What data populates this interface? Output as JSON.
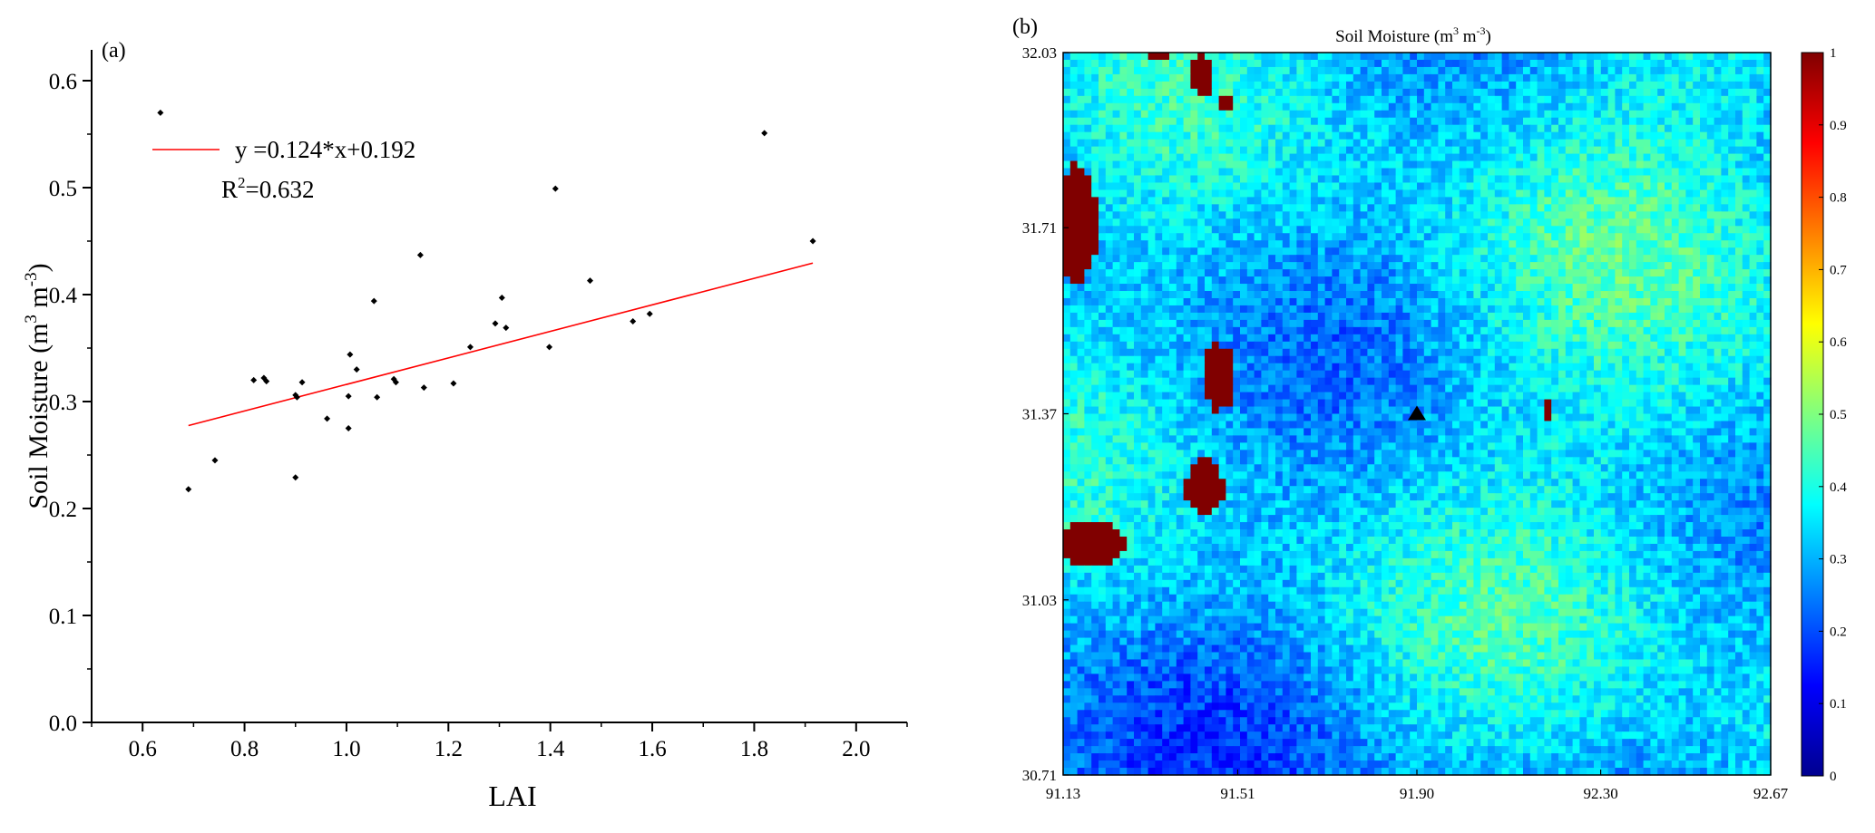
{
  "panel_a_label": "(a)",
  "panel_b_label": "(b)",
  "chart_data": [
    {
      "type": "scatter",
      "panel": "(a)",
      "xlabel": "LAI",
      "ylabel_main": "Soil Moisture (m",
      "ylabel_sup1": "3",
      "ylabel_mid": " m",
      "ylabel_sup2": "-3",
      "ylabel_end": ")",
      "xlim": [
        0.5,
        2.1
      ],
      "ylim": [
        0.0,
        0.6
      ],
      "xticks": [
        "0.6",
        "0.8",
        "1.0",
        "1.2",
        "1.4",
        "1.6",
        "1.8",
        "2.0"
      ],
      "yticks": [
        "0.0",
        "0.1",
        "0.2",
        "0.3",
        "0.4",
        "0.5",
        "0.6"
      ],
      "points": [
        [
          0.635,
          0.57
        ],
        [
          0.69,
          0.218
        ],
        [
          0.742,
          0.245
        ],
        [
          0.818,
          0.32
        ],
        [
          0.838,
          0.322
        ],
        [
          0.843,
          0.319
        ],
        [
          0.9,
          0.306
        ],
        [
          0.903,
          0.304
        ],
        [
          0.9,
          0.229
        ],
        [
          0.913,
          0.318
        ],
        [
          0.962,
          0.284
        ],
        [
          1.004,
          0.275
        ],
        [
          1.004,
          0.305
        ],
        [
          1.007,
          0.344
        ],
        [
          1.02,
          0.33
        ],
        [
          1.054,
          0.394
        ],
        [
          1.06,
          0.304
        ],
        [
          1.093,
          0.321
        ],
        [
          1.097,
          0.318
        ],
        [
          1.145,
          0.437
        ],
        [
          1.152,
          0.313
        ],
        [
          1.21,
          0.317
        ],
        [
          1.243,
          0.351
        ],
        [
          1.292,
          0.373
        ],
        [
          1.305,
          0.397
        ],
        [
          1.313,
          0.369
        ],
        [
          1.398,
          0.351
        ],
        [
          1.41,
          0.499
        ],
        [
          1.478,
          0.413
        ],
        [
          1.562,
          0.375
        ],
        [
          1.595,
          0.382
        ],
        [
          1.82,
          0.551
        ],
        [
          1.915,
          0.45
        ]
      ],
      "fit_line": {
        "slope": 0.124,
        "intercept": 0.192,
        "x_range": [
          0.69,
          1.915
        ],
        "color": "#ff0000"
      },
      "legend_text": "y =0.124*x+0.192",
      "r2_prefix": "R",
      "r2_sup": "2",
      "r2_value": "=0.632"
    },
    {
      "type": "heatmap",
      "panel": "(b)",
      "title_main": "Soil Moisture (m",
      "title_sup1": "3",
      "title_mid": " m",
      "title_sup2": "-3",
      "title_end": ")",
      "xlim": [
        91.13,
        92.67
      ],
      "ylim": [
        30.71,
        32.03
      ],
      "xticks": [
        "91.13",
        "91.51",
        "91.90",
        "92.30",
        "92.67"
      ],
      "yticks": [
        "32.03",
        "31.71",
        "31.37",
        "31.03",
        "30.71"
      ],
      "colorbar": {
        "min": 0,
        "max": 1,
        "ticks": [
          "1",
          "0.9",
          "0.8",
          "0.7",
          "0.6",
          "0.5",
          "0.4",
          "0.3",
          "0.2",
          "0.1",
          "0"
        ],
        "colormap": "jet"
      },
      "typical_value_range": [
        0.2,
        0.5
      ],
      "saturated_patches_value": 1,
      "marker": {
        "shape": "triangle",
        "lon": 91.9,
        "lat": 31.37,
        "color": "#000000"
      }
    }
  ]
}
